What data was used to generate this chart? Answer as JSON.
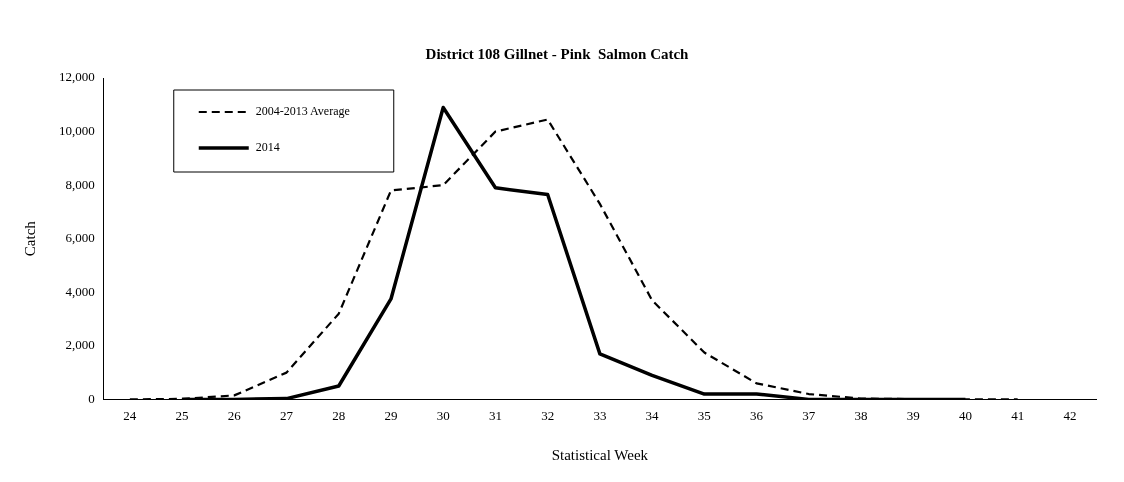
{
  "chart_data": {
    "type": "line",
    "title": "District 108 Gillnet - Pink  Salmon Catch",
    "xlabel": "Statistical Week",
    "ylabel": "Catch",
    "categories": [
      "24",
      "25",
      "26",
      "27",
      "28",
      "29",
      "30",
      "31",
      "32",
      "33",
      "34",
      "35",
      "36",
      "37",
      "38",
      "39",
      "40",
      "41",
      "42"
    ],
    "series": [
      {
        "name": "2004-2013 Average",
        "color": "#000000",
        "line_style": "dashed",
        "values": [
          0,
          20,
          150,
          1000,
          3200,
          7800,
          8000,
          10000,
          10450,
          7300,
          3700,
          1750,
          600,
          200,
          30,
          10,
          0,
          0,
          null
        ]
      },
      {
        "name": "2014",
        "color": "#000000",
        "line_style": "solid",
        "values": [
          null,
          0,
          0,
          30,
          500,
          3750,
          10900,
          7900,
          7650,
          1700,
          900,
          200,
          200,
          0,
          0,
          0,
          0,
          null,
          null
        ]
      }
    ],
    "ylim": [
      0,
      12000
    ],
    "yticks": [
      0,
      {
        "value": 2000,
        "label": "2,000"
      },
      {
        "value": 4000,
        "label": "4,000"
      },
      {
        "value": 6000,
        "label": "6,000"
      },
      {
        "value": 8000,
        "label": "8,000"
      },
      {
        "value": 10000,
        "label": "10,000"
      },
      {
        "value": 12000,
        "label": "12,000"
      }
    ],
    "grid": false,
    "legend": "top left",
    "marker": "none"
  }
}
